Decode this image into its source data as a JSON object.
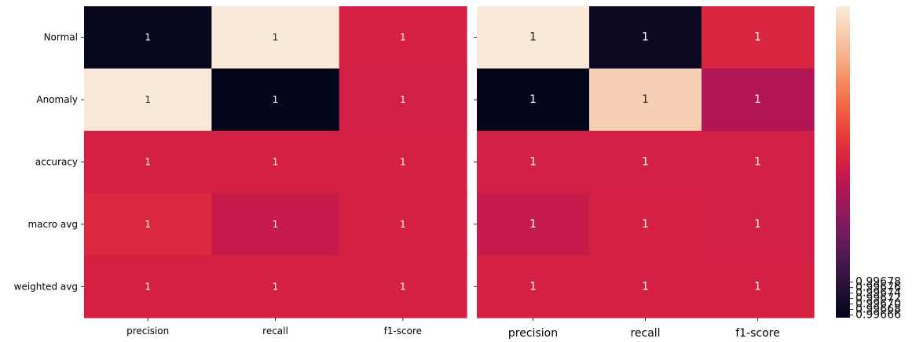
{
  "chart_data": [
    {
      "type": "heatmap",
      "title": "",
      "rows": [
        "Normal",
        "Anomaly",
        "accuracy",
        "macro avg",
        "weighted avg"
      ],
      "columns": [
        "precision",
        "recall",
        "f1-score"
      ],
      "values": [
        [
          0.99666,
          0.99778,
          0.99722
        ],
        [
          0.99778,
          0.99665,
          0.99721
        ],
        [
          0.99722,
          0.99722,
          0.99722
        ],
        [
          0.99725,
          0.99718,
          0.99722
        ],
        [
          0.99722,
          0.99722,
          0.99722
        ]
      ],
      "annotations": [
        [
          "1",
          "1",
          "1"
        ],
        [
          "1",
          "1",
          "1"
        ],
        [
          "1",
          "1",
          "1"
        ],
        [
          "1",
          "1",
          "1"
        ],
        [
          "1",
          "1",
          "1"
        ]
      ]
    },
    {
      "type": "heatmap",
      "title": "",
      "columns": [
        "precision",
        "recall",
        "f1-score"
      ],
      "values": [
        [
          0.99778,
          0.99668,
          0.99724
        ],
        [
          0.99665,
          0.9977,
          0.99712
        ],
        [
          0.99721,
          0.99721,
          0.99721
        ],
        [
          0.99718,
          0.99722,
          0.99721
        ],
        [
          0.99722,
          0.99722,
          0.99722
        ]
      ],
      "annotations": [
        [
          "1",
          "1",
          "1"
        ],
        [
          "1",
          "1",
          "1"
        ],
        [
          "1",
          "1",
          "1"
        ],
        [
          "1",
          "1",
          "1"
        ],
        [
          "1",
          "1",
          "1"
        ]
      ]
    }
  ],
  "colorbar": {
    "colormap": "rocket",
    "vmin": 0.99665,
    "vmax": 0.99779,
    "ticks": [
      "0.99666",
      "0.99668",
      "0.99670",
      "0.99672",
      "0.99674",
      "0.99676",
      "0.99678"
    ],
    "tick_labels": [
      "0.99666",
      "0.99668",
      "0.99670",
      "0.99672",
      "0.99674",
      "0.99676",
      "0.99678"
    ],
    "tick_values": [
      0.99666,
      0.99668,
      0.9967,
      0.99672,
      0.99674,
      0.99676,
      0.99678
    ]
  },
  "colors": {
    "background": "#ffffff",
    "text_dark": "#262626",
    "text_light": "#ffffff"
  }
}
